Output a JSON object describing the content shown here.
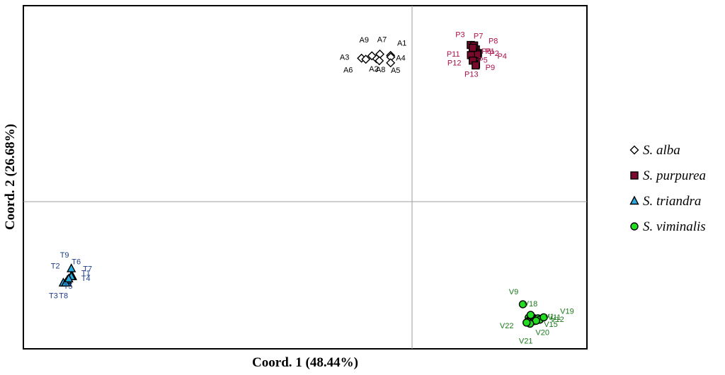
{
  "chart_data": {
    "type": "scatter",
    "title": "",
    "xlabel": "Coord. 1 (48.44%)",
    "ylabel": "Coord. 2 (26.68%)",
    "xlim": [
      -1.0,
      1.0
    ],
    "ylim": [
      -1.0,
      1.0
    ],
    "grid": "zero-lines",
    "legend_position": "right",
    "series": [
      {
        "name": "S. alba",
        "marker": "diamond",
        "fill": "#ffffff",
        "stroke": "#000000",
        "label_color": "#000000",
        "points": [
          {
            "label": "A1",
            "x": -0.11,
            "y": 0.852
          },
          {
            "label": "A2",
            "x": -0.182,
            "y": 0.833
          },
          {
            "label": "A3",
            "x": -0.259,
            "y": 0.836
          },
          {
            "label": "A4",
            "x": -0.109,
            "y": 0.843
          },
          {
            "label": "A5",
            "x": -0.11,
            "y": 0.809
          },
          {
            "label": "A6",
            "x": -0.237,
            "y": 0.83
          },
          {
            "label": "A7",
            "x": -0.165,
            "y": 0.86
          },
          {
            "label": "A8",
            "x": -0.168,
            "y": 0.821
          },
          {
            "label": "A9",
            "x": -0.206,
            "y": 0.85
          }
        ]
      },
      {
        "name": "S. purpurea",
        "marker": "square",
        "fill": "#7a0a2b",
        "stroke": "#000000",
        "label_color": "#a8104a",
        "points": [
          {
            "label": "P1",
            "x": 0.327,
            "y": 0.887
          },
          {
            "label": "P2",
            "x": 0.338,
            "y": 0.866
          },
          {
            "label": "P3",
            "x": 0.301,
            "y": 0.913
          },
          {
            "label": "P4",
            "x": 0.331,
            "y": 0.85
          },
          {
            "label": "P5",
            "x": 0.323,
            "y": 0.83
          },
          {
            "label": "P6",
            "x": 0.334,
            "y": 0.858
          },
          {
            "label": "P7",
            "x": 0.318,
            "y": 0.91
          },
          {
            "label": "P8",
            "x": 0.311,
            "y": 0.897
          },
          {
            "label": "P9",
            "x": 0.328,
            "y": 0.801
          },
          {
            "label": "P11",
            "x": 0.302,
            "y": 0.854
          },
          {
            "label": "P12",
            "x": 0.311,
            "y": 0.822
          },
          {
            "label": "P13",
            "x": 0.326,
            "y": 0.794
          }
        ]
      },
      {
        "name": "S. triandra",
        "marker": "triangle",
        "fill": "#29abe2",
        "stroke": "#000000",
        "label_color": "#1f3c88",
        "points": [
          {
            "label": "T1",
            "x": -1.741,
            "y": -0.436
          },
          {
            "label": "T2",
            "x": -1.767,
            "y": -0.473
          },
          {
            "label": "T3",
            "x": -1.788,
            "y": -0.473
          },
          {
            "label": "T4",
            "x": -1.745,
            "y": -0.428
          },
          {
            "label": "T5",
            "x": -1.767,
            "y": -0.457
          },
          {
            "label": "T6",
            "x": -1.747,
            "y": -0.39
          },
          {
            "label": "T7",
            "x": -1.747,
            "y": -0.436
          },
          {
            "label": "T8",
            "x": -1.776,
            "y": -0.473
          },
          {
            "label": "T9",
            "x": -1.76,
            "y": -0.449
          }
        ]
      },
      {
        "name": "S. viminalis",
        "marker": "circle",
        "fill": "#22dd22",
        "stroke": "#000000",
        "label_color": "#1b7a1b",
        "points": [
          {
            "label": "V9",
            "x": 0.568,
            "y": -0.598
          },
          {
            "label": "V18",
            "x": 0.608,
            "y": -0.66
          },
          {
            "label": "V19",
            "x": 0.675,
            "y": -0.674
          },
          {
            "label": "V20",
            "x": 0.636,
            "y": -0.694
          },
          {
            "label": "V21",
            "x": 0.605,
            "y": -0.711
          },
          {
            "label": "V22",
            "x": 0.587,
            "y": -0.705
          }
        ]
      }
    ],
    "unlabeled_cluster": {
      "series": "S. viminalis",
      "label_fragments": [
        "V1",
        "V11",
        "V12",
        "V15"
      ],
      "points": [
        {
          "x": 0.598,
          "y": -0.676
        },
        {
          "x": 0.612,
          "y": -0.672
        },
        {
          "x": 0.623,
          "y": -0.678
        },
        {
          "x": 0.632,
          "y": -0.682
        },
        {
          "x": 0.646,
          "y": -0.68
        },
        {
          "x": 0.603,
          "y": -0.69
        },
        {
          "x": 0.617,
          "y": -0.686
        },
        {
          "x": 0.594,
          "y": -0.7
        },
        {
          "x": 0.628,
          "y": -0.696
        },
        {
          "x": 0.655,
          "y": -0.688
        }
      ]
    }
  }
}
